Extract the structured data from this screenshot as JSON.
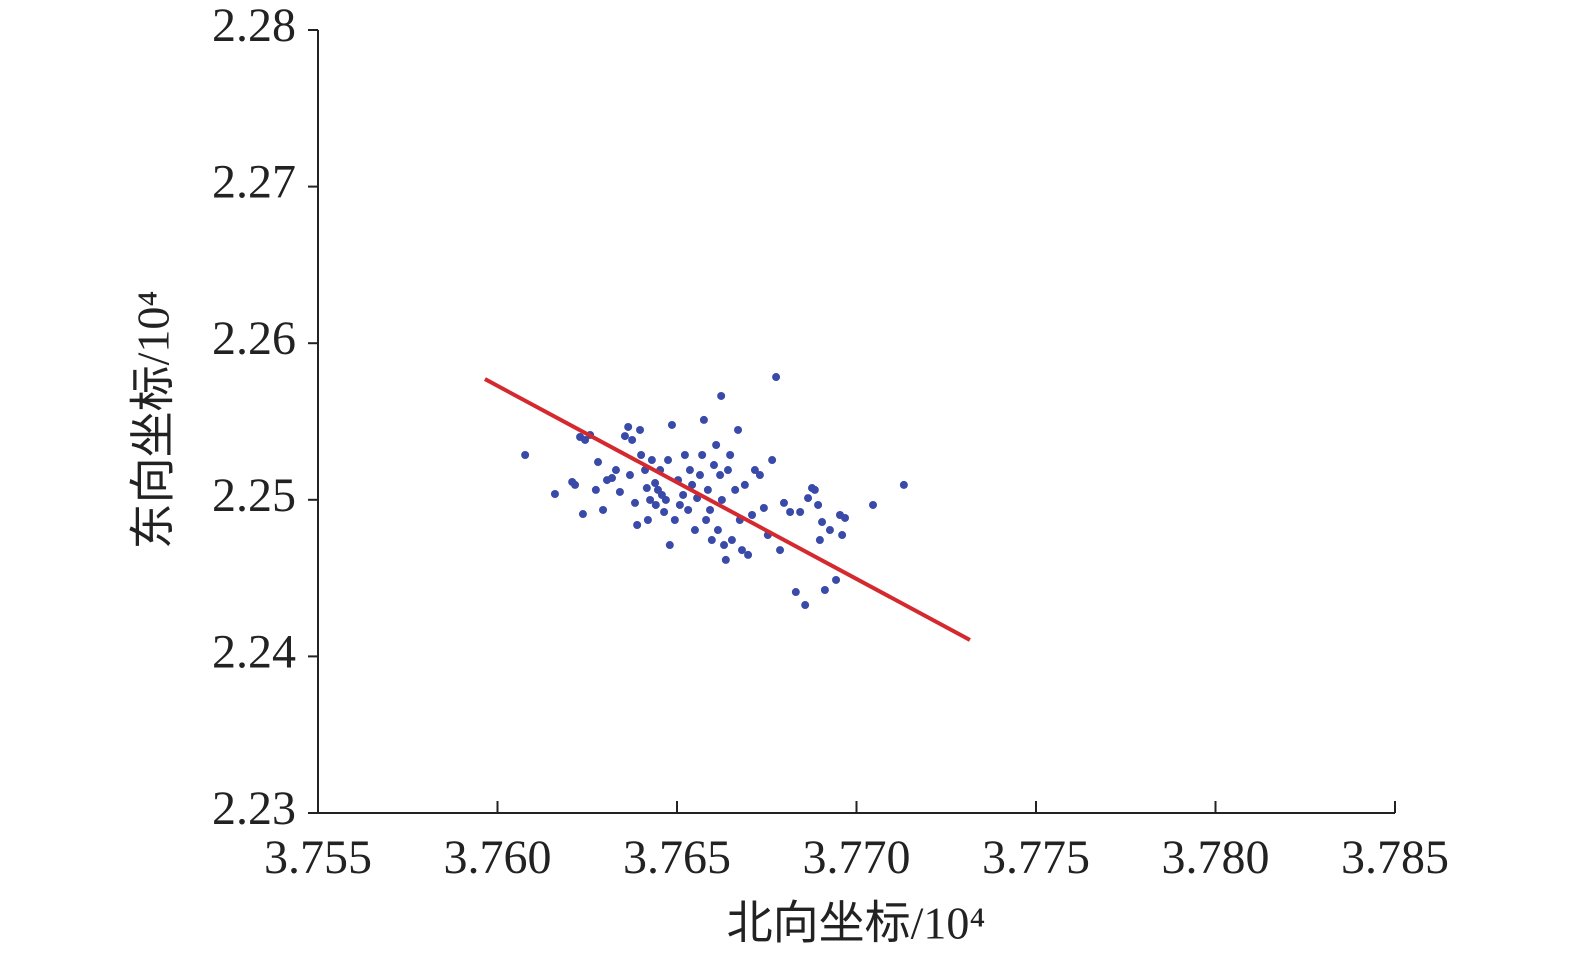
{
  "chart_data": {
    "type": "scatter",
    "x_label": "北向坐标/10⁴",
    "y_label": "东向坐标/10⁴",
    "xlim": [
      3.755,
      3.785
    ],
    "ylim": [
      2.23,
      2.28
    ],
    "xticks": [
      3.755,
      {
        "value": 3.76,
        "label": "3.760"
      },
      3.765,
      {
        "value": 3.77,
        "label": "3.770"
      },
      3.775,
      {
        "value": 3.78,
        "label": "3.780"
      },
      3.785
    ],
    "yticks": [
      2.23,
      2.24,
      2.25,
      2.26,
      2.27,
      2.28
    ],
    "series": [
      {
        "mode": "points",
        "color": "#3a4aa8",
        "x": [
          3.76077,
          3.7616,
          3.76208,
          3.76216,
          3.76238,
          3.7623,
          3.76244,
          3.76258,
          3.7628,
          3.76274,
          3.76294,
          3.76305,
          3.76319,
          3.7633,
          3.76341,
          3.76355,
          3.76364,
          3.76369,
          3.76375,
          3.76383,
          3.76389,
          3.76397,
          3.764,
          3.76411,
          3.76416,
          3.76419,
          3.76425,
          3.7643,
          3.76439,
          3.76441,
          3.76447,
          3.76453,
          3.76458,
          3.76464,
          3.76469,
          3.76475,
          3.7648,
          3.76486,
          3.76494,
          3.76503,
          3.76508,
          3.76517,
          3.76522,
          3.76531,
          3.76536,
          3.76542,
          3.7655,
          3.76556,
          3.76564,
          3.7657,
          3.76575,
          3.76581,
          3.76586,
          3.76592,
          3.76597,
          3.76603,
          3.76609,
          3.76614,
          3.7662,
          3.76623,
          3.76625,
          3.76631,
          3.76636,
          3.76642,
          3.76648,
          3.76653,
          3.76662,
          3.7667,
          3.76675,
          3.76681,
          3.76689,
          3.76698,
          3.76709,
          3.76717,
          3.76731,
          3.76742,
          3.76753,
          3.76765,
          3.76776,
          3.76787,
          3.76798,
          3.76815,
          3.76831,
          3.76843,
          3.76857,
          3.76865,
          3.76876,
          3.76884,
          3.76893,
          3.76898,
          3.76904,
          3.76912,
          3.76926,
          3.76943,
          3.76954,
          3.7696,
          3.76968,
          3.77046,
          3.77132
        ],
        "values": [
          2.25286,
          2.25037,
          2.25114,
          2.25095,
          2.24909,
          2.25401,
          2.25382,
          2.25414,
          2.25241,
          2.25063,
          2.24935,
          2.25126,
          2.25139,
          2.2519,
          2.2505,
          2.25407,
          2.25465,
          2.25158,
          2.25382,
          2.2498,
          2.24839,
          2.25446,
          2.25286,
          2.2519,
          2.25075,
          2.24871,
          2.24999,
          2.25254,
          2.25107,
          2.24967,
          2.25063,
          2.2519,
          2.25031,
          2.24922,
          2.24999,
          2.25254,
          2.24711,
          2.25478,
          2.24871,
          2.25126,
          2.24967,
          2.25031,
          2.25286,
          2.24935,
          2.2519,
          2.25095,
          2.24807,
          2.25011,
          2.25158,
          2.25286,
          2.2551,
          2.24871,
          2.25063,
          2.24935,
          2.24743,
          2.25222,
          2.2535,
          2.24807,
          2.25158,
          2.25663,
          2.24999,
          2.24711,
          2.24616,
          2.2519,
          2.25286,
          2.24743,
          2.25063,
          2.25446,
          2.24871,
          2.24679,
          2.25095,
          2.24648,
          2.24903,
          2.2519,
          2.25158,
          2.24948,
          2.24775,
          2.25254,
          2.25784,
          2.24679,
          2.2498,
          2.24922,
          2.24411,
          2.24922,
          2.24328,
          2.25011,
          2.25075,
          2.25063,
          2.24967,
          2.24743,
          2.24858,
          2.24424,
          2.24807,
          2.24488,
          2.24903,
          2.24775,
          2.24884,
          2.24967,
          2.25095
        ]
      },
      {
        "mode": "line",
        "color": "#d42a2f",
        "x": [
          3.75965,
          3.77316
        ],
        "values": [
          2.25771,
          2.24105
        ]
      }
    ]
  }
}
